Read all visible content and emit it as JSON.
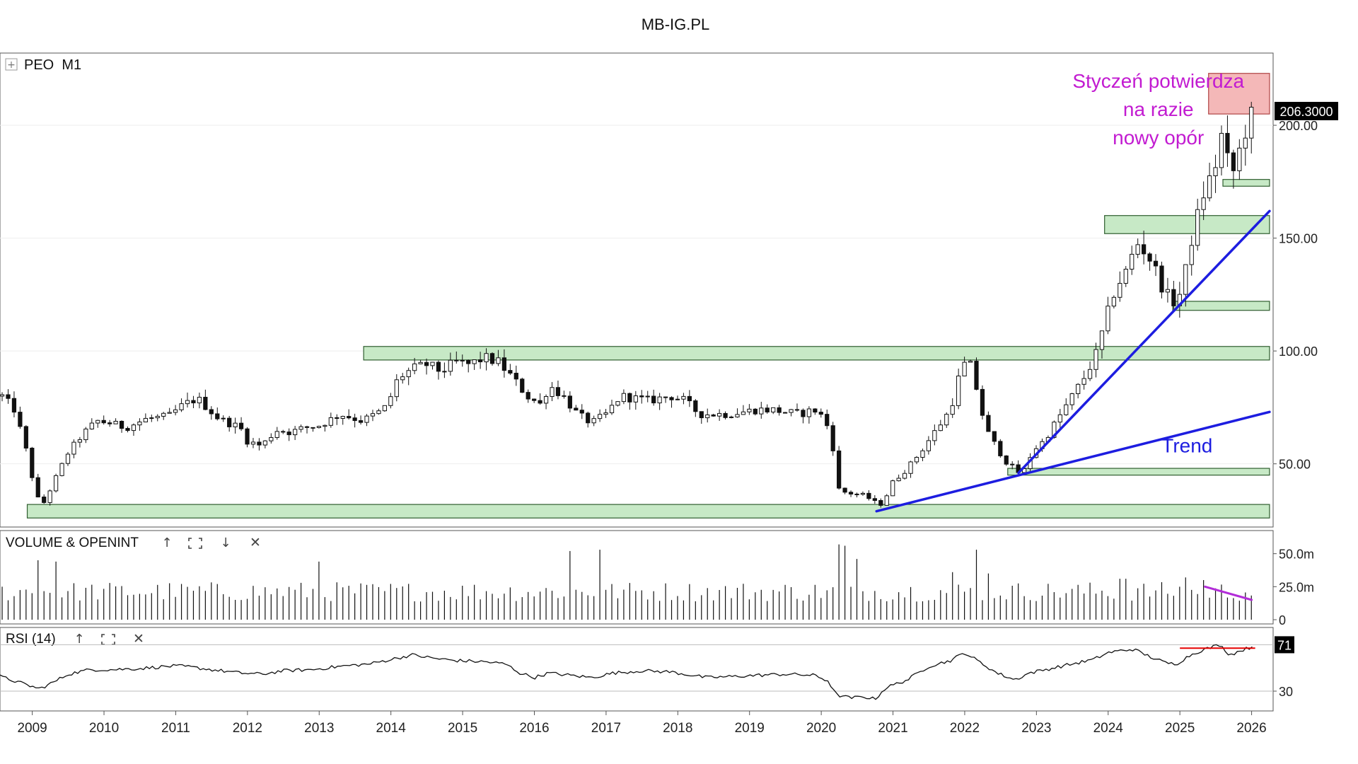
{
  "header": {
    "title": "MB-IG.PL"
  },
  "panels": {
    "price": {
      "symbol_label": "PEO  M1",
      "expand_glyph": "+"
    },
    "volume": {
      "label": "VOLUME & OPENINT",
      "controls": [
        "up-arrow-icon",
        "maximize-icon",
        "down-arrow-icon",
        "close-icon"
      ]
    },
    "rsi": {
      "label": "RSI (14)",
      "controls": [
        "up-arrow-icon",
        "maximize-icon",
        "close-icon"
      ]
    }
  },
  "colors": {
    "zone_fill": "#c7e9c6",
    "zone_stroke": "#2f5d2f",
    "resistance_fill": "#f4b8b8",
    "resistance_stroke": "#b04444",
    "trend_line": "#1d1de0",
    "annotation": "#c21bd1",
    "volume_divergence": "#b22cd8",
    "rsi_divergence": "#e60000"
  },
  "chart_data": [
    {
      "type": "candlestick",
      "title": "PEO M1",
      "x_range": [
        2008.55,
        2026.3
      ],
      "ylim": [
        22,
        232
      ],
      "yticks": [
        50,
        100,
        150,
        200
      ],
      "ytick_labels": [
        "50.00",
        "100.00",
        "150.00",
        "200.00"
      ],
      "last_price_label": "206.3000",
      "xticks": [
        2009,
        2010,
        2011,
        2012,
        2013,
        2014,
        2015,
        2016,
        2017,
        2018,
        2019,
        2020,
        2021,
        2022,
        2023,
        2024,
        2025,
        2026
      ],
      "xtick_labels": [
        "2009",
        "2010",
        "2011",
        "2012",
        "2013",
        "2014",
        "2015",
        "2016",
        "2017",
        "2018",
        "2019",
        "2020",
        "2021",
        "2022",
        "2023",
        "2024",
        "2025",
        "2026"
      ],
      "close_path": [
        [
          2008.58,
          80
        ],
        [
          2008.75,
          74
        ],
        [
          2008.9,
          58
        ],
        [
          2009.0,
          44
        ],
        [
          2009.12,
          30
        ],
        [
          2009.3,
          42
        ],
        [
          2009.5,
          55
        ],
        [
          2009.7,
          63
        ],
        [
          2009.9,
          69
        ],
        [
          2010.1,
          68
        ],
        [
          2010.3,
          66
        ],
        [
          2010.6,
          70
        ],
        [
          2010.9,
          71
        ],
        [
          2011.1,
          76
        ],
        [
          2011.3,
          79
        ],
        [
          2011.6,
          70
        ],
        [
          2011.9,
          66
        ],
        [
          2012.0,
          60
        ],
        [
          2012.2,
          58
        ],
        [
          2012.4,
          65
        ],
        [
          2012.6,
          64
        ],
        [
          2012.8,
          66
        ],
        [
          2013.0,
          67
        ],
        [
          2013.3,
          72
        ],
        [
          2013.6,
          69
        ],
        [
          2013.9,
          74
        ],
        [
          2014.0,
          80
        ],
        [
          2014.1,
          88
        ],
        [
          2014.3,
          92
        ],
        [
          2014.5,
          94
        ],
        [
          2014.7,
          91
        ],
        [
          2014.9,
          95
        ],
        [
          2015.1,
          94
        ],
        [
          2015.3,
          97
        ],
        [
          2015.5,
          95
        ],
        [
          2015.7,
          88
        ],
        [
          2015.9,
          80
        ],
        [
          2016.1,
          76
        ],
        [
          2016.2,
          85
        ],
        [
          2016.4,
          80
        ],
        [
          2016.6,
          72
        ],
        [
          2016.8,
          68
        ],
        [
          2017.0,
          72
        ],
        [
          2017.2,
          80
        ],
        [
          2017.4,
          79
        ],
        [
          2017.6,
          78
        ],
        [
          2017.9,
          80
        ],
        [
          2018.1,
          78
        ],
        [
          2018.3,
          72
        ],
        [
          2018.5,
          72
        ],
        [
          2018.7,
          72
        ],
        [
          2018.9,
          73
        ],
        [
          2019.1,
          74
        ],
        [
          2019.3,
          74
        ],
        [
          2019.5,
          73
        ],
        [
          2019.7,
          72
        ],
        [
          2019.9,
          74
        ],
        [
          2020.05,
          70
        ],
        [
          2020.15,
          60
        ],
        [
          2020.25,
          38
        ],
        [
          2020.4,
          37
        ],
        [
          2020.6,
          36
        ],
        [
          2020.75,
          33
        ],
        [
          2020.85,
          32
        ],
        [
          2021.0,
          42
        ],
        [
          2021.2,
          48
        ],
        [
          2021.4,
          56
        ],
        [
          2021.6,
          65
        ],
        [
          2021.8,
          74
        ],
        [
          2021.95,
          92
        ],
        [
          2022.05,
          96
        ],
        [
          2022.12,
          90
        ],
        [
          2022.2,
          78
        ],
        [
          2022.3,
          65
        ],
        [
          2022.45,
          57
        ],
        [
          2022.6,
          50
        ],
        [
          2022.8,
          45
        ],
        [
          2022.95,
          56
        ],
        [
          2023.1,
          60
        ],
        [
          2023.3,
          70
        ],
        [
          2023.5,
          80
        ],
        [
          2023.7,
          90
        ],
        [
          2023.85,
          100
        ],
        [
          2023.95,
          112
        ],
        [
          2024.1,
          128
        ],
        [
          2024.25,
          135
        ],
        [
          2024.4,
          148
        ],
        [
          2024.55,
          143
        ],
        [
          2024.7,
          133
        ],
        [
          2024.8,
          125
        ],
        [
          2024.95,
          121
        ],
        [
          2025.05,
          130
        ],
        [
          2025.15,
          148
        ],
        [
          2025.25,
          160
        ],
        [
          2025.35,
          172
        ],
        [
          2025.45,
          178
        ],
        [
          2025.55,
          188
        ],
        [
          2025.6,
          200
        ],
        [
          2025.7,
          175
        ],
        [
          2025.8,
          185
        ],
        [
          2025.9,
          197
        ],
        [
          2026.0,
          204
        ],
        [
          2026.05,
          206.3
        ]
      ],
      "support_zones": [
        [
          2008.93,
          2026.25,
          26,
          32
        ],
        [
          2013.62,
          2026.25,
          96,
          102
        ],
        [
          2022.6,
          2026.25,
          45,
          48
        ],
        [
          2024.9,
          2026.25,
          118,
          122
        ],
        [
          2023.95,
          2026.25,
          152,
          160
        ],
        [
          2025.6,
          2026.25,
          173,
          176
        ]
      ],
      "resistance_zone": [
        2025.4,
        2026.25,
        205,
        223
      ],
      "trend_lines": [
        {
          "name": "Trend",
          "points": [
            [
              2020.77,
              29
            ],
            [
              2026.25,
              73
            ]
          ]
        },
        {
          "name": "",
          "points": [
            [
              2022.75,
              46
            ],
            [
              2026.25,
              162
            ]
          ]
        }
      ],
      "annotations": [
        {
          "text": [
            "Styczeń potwierdza",
            "na razie",
            "nowy opór"
          ],
          "x": 2024.7,
          "y": 200
        },
        {
          "text": [
            "Trend"
          ],
          "x": 2025.1,
          "y": 55
        }
      ]
    },
    {
      "type": "bar",
      "title": "VOLUME & OPENINT",
      "ylim": [
        0,
        60
      ],
      "yticks": [
        0,
        25,
        50
      ],
      "ytick_labels": [
        "0",
        "25.0m",
        "50.0m"
      ],
      "typical_volume_m": 25,
      "spikes": [
        [
          2009.1,
          45
        ],
        [
          2009.3,
          44
        ],
        [
          2013.0,
          44
        ],
        [
          2016.5,
          52
        ],
        [
          2016.9,
          53
        ],
        [
          2020.25,
          57
        ],
        [
          2020.35,
          56
        ],
        [
          2020.5,
          46
        ],
        [
          2021.85,
          36
        ],
        [
          2022.15,
          53
        ],
        [
          2022.3,
          35
        ],
        [
          2024.2,
          31
        ],
        [
          2025.1,
          32
        ],
        [
          2025.3,
          30
        ]
      ],
      "divergence_line": [
        [
          2025.35,
          25
        ],
        [
          2026.0,
          15
        ]
      ]
    },
    {
      "type": "line",
      "title": "RSI (14)",
      "ylim": [
        15,
        80
      ],
      "yticks": [
        30,
        71
      ],
      "ytick_labels": [
        "30",
        "71"
      ],
      "reference_lines": [
        30,
        71
      ],
      "series": [
        {
          "name": "",
          "values": [
            [
              2008.55,
              43
            ],
            [
              2008.9,
              36
            ],
            [
              2009.1,
              32
            ],
            [
              2009.3,
              38
            ],
            [
              2009.5,
              45
            ],
            [
              2009.8,
              49
            ],
            [
              2010.1,
              49
            ],
            [
              2010.5,
              50
            ],
            [
              2010.9,
              52
            ],
            [
              2011.1,
              52
            ],
            [
              2011.5,
              49
            ],
            [
              2011.9,
              46
            ],
            [
              2012.2,
              45
            ],
            [
              2012.5,
              48
            ],
            [
              2012.9,
              49
            ],
            [
              2013.3,
              52
            ],
            [
              2013.7,
              54
            ],
            [
              2014.0,
              58
            ],
            [
              2014.3,
              62
            ],
            [
              2014.6,
              59
            ],
            [
              2014.9,
              57
            ],
            [
              2015.3,
              56
            ],
            [
              2015.6,
              54
            ],
            [
              2015.8,
              46
            ],
            [
              2016.0,
              42
            ],
            [
              2016.2,
              46
            ],
            [
              2016.5,
              44
            ],
            [
              2016.8,
              42
            ],
            [
              2017.1,
              46
            ],
            [
              2017.5,
              48
            ],
            [
              2017.9,
              47
            ],
            [
              2018.1,
              45
            ],
            [
              2018.4,
              42
            ],
            [
              2018.8,
              43
            ],
            [
              2019.1,
              44
            ],
            [
              2019.5,
              45
            ],
            [
              2019.9,
              44
            ],
            [
              2020.1,
              39
            ],
            [
              2020.2,
              27
            ],
            [
              2020.4,
              24
            ],
            [
              2020.6,
              25
            ],
            [
              2020.75,
              23
            ],
            [
              2020.9,
              33
            ],
            [
              2021.2,
              40
            ],
            [
              2021.5,
              52
            ],
            [
              2021.8,
              57
            ],
            [
              2022.0,
              64
            ],
            [
              2022.2,
              56
            ],
            [
              2022.45,
              46
            ],
            [
              2022.7,
              40
            ],
            [
              2022.9,
              46
            ],
            [
              2023.2,
              50
            ],
            [
              2023.5,
              54
            ],
            [
              2023.8,
              58
            ],
            [
              2024.0,
              64
            ],
            [
              2024.2,
              66
            ],
            [
              2024.35,
              67
            ],
            [
              2024.6,
              60
            ],
            [
              2024.8,
              55
            ],
            [
              2024.95,
              54
            ],
            [
              2025.15,
              62
            ],
            [
              2025.3,
              66
            ],
            [
              2025.55,
              71
            ],
            [
              2025.7,
              62
            ],
            [
              2025.85,
              66
            ],
            [
              2026.0,
              69
            ],
            [
              2026.05,
              71
            ]
          ]
        }
      ],
      "divergence_line": [
        [
          2025.0,
          68
        ],
        [
          2026.05,
          68
        ]
      ]
    }
  ]
}
